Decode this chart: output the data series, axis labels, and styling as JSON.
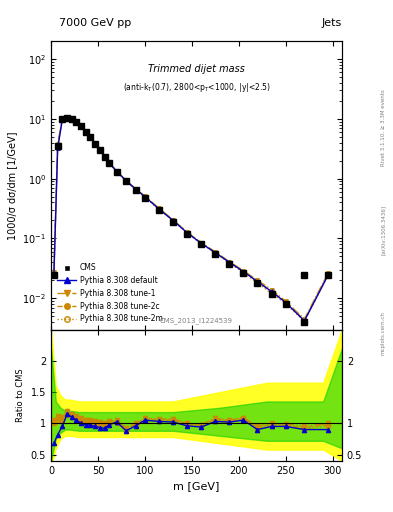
{
  "title_top": "7000 GeV pp",
  "title_right": "Jets",
  "plot_title": "Trimmed dijet mass",
  "plot_subtitle": "(anti-k_{T}(0.7), 2800<p_{T}<1000, |y|<2.5)",
  "ylabel_main": "1000/σ dσ/dm [1/GeV]",
  "ylabel_ratio": "Ratio to CMS",
  "xlabel": "m [GeV]",
  "watermark": "CMS_2013_I1224539",
  "rivet_label": "Rivet 3.1.10, ≥ 3.3M events",
  "arxiv_label": "[arXiv:1306.3436]",
  "mcplots_label": "mcplots.cern.ch",
  "cms_x": [
    3,
    7,
    12,
    17,
    22,
    27,
    32,
    37,
    42,
    47,
    52,
    57,
    62,
    70,
    80,
    90,
    100,
    115,
    130,
    145,
    160,
    175,
    190,
    205,
    220,
    235,
    250,
    270,
    295
  ],
  "cms_y": [
    0.025,
    3.5,
    10.0,
    10.5,
    10.0,
    9.0,
    7.5,
    6.0,
    5.0,
    3.8,
    3.0,
    2.3,
    1.8,
    1.3,
    0.9,
    0.65,
    0.48,
    0.3,
    0.19,
    0.12,
    0.08,
    0.055,
    0.038,
    0.026,
    0.018,
    0.012,
    0.008,
    0.004,
    0.025
  ],
  "pythia_default_x": [
    3,
    7,
    12,
    17,
    22,
    27,
    32,
    37,
    42,
    47,
    52,
    57,
    62,
    70,
    80,
    90,
    100,
    115,
    130,
    145,
    160,
    175,
    190,
    205,
    220,
    235,
    250,
    270,
    295
  ],
  "pythia_default_y": [
    0.025,
    3.2,
    9.8,
    10.3,
    10.0,
    9.0,
    7.5,
    6.1,
    5.05,
    3.85,
    3.05,
    2.32,
    1.82,
    1.32,
    0.92,
    0.67,
    0.5,
    0.31,
    0.2,
    0.125,
    0.083,
    0.058,
    0.04,
    0.028,
    0.019,
    0.013,
    0.0085,
    0.0042,
    0.024
  ],
  "pythia_tune1_x": [
    3,
    7,
    12,
    17,
    22,
    27,
    32,
    37,
    42,
    47,
    52,
    57,
    62,
    70,
    80,
    90,
    100,
    115,
    130,
    145,
    160,
    175,
    190,
    205,
    220,
    235,
    250,
    270,
    295
  ],
  "pythia_tune1_y": [
    0.028,
    3.8,
    10.2,
    10.6,
    10.2,
    9.2,
    7.7,
    6.2,
    5.1,
    3.9,
    3.1,
    2.35,
    1.84,
    1.34,
    0.93,
    0.68,
    0.51,
    0.32,
    0.205,
    0.128,
    0.085,
    0.06,
    0.041,
    0.029,
    0.02,
    0.014,
    0.009,
    0.0045,
    0.026
  ],
  "pythia_tune2c_x": [
    3,
    7,
    12,
    17,
    22,
    27,
    32,
    37,
    42,
    47,
    52,
    57,
    62,
    70,
    80,
    90,
    100,
    115,
    130,
    145,
    160,
    175,
    190,
    205,
    220,
    235,
    250,
    270,
    295
  ],
  "pythia_tune2c_y": [
    0.027,
    3.6,
    10.0,
    10.5,
    10.1,
    9.1,
    7.6,
    6.15,
    5.08,
    3.87,
    3.07,
    2.33,
    1.83,
    1.33,
    0.92,
    0.67,
    0.5,
    0.315,
    0.202,
    0.127,
    0.084,
    0.059,
    0.04,
    0.028,
    0.019,
    0.013,
    0.0088,
    0.0043,
    0.025
  ],
  "pythia_tune2m_x": [
    3,
    7,
    12,
    17,
    22,
    27,
    32,
    37,
    42,
    47,
    52,
    57,
    62,
    70,
    80,
    90,
    100,
    115,
    130,
    145,
    160,
    175,
    190,
    205,
    220,
    235,
    250,
    270,
    295
  ],
  "pythia_tune2m_y": [
    0.026,
    3.4,
    9.9,
    10.4,
    10.0,
    9.05,
    7.55,
    6.1,
    5.03,
    3.82,
    3.02,
    2.3,
    1.81,
    1.31,
    0.91,
    0.66,
    0.49,
    0.308,
    0.198,
    0.124,
    0.082,
    0.057,
    0.039,
    0.027,
    0.018,
    0.012,
    0.0082,
    0.0041,
    0.024
  ],
  "ratio_default_y": [
    0.68,
    0.82,
    0.95,
    1.15,
    1.1,
    1.05,
    1.0,
    0.98,
    0.97,
    0.95,
    0.93,
    0.92,
    0.98,
    1.02,
    0.88,
    0.96,
    1.05,
    1.03,
    1.02,
    0.96,
    0.94,
    1.03,
    1.02,
    1.05,
    0.9,
    0.95,
    0.95,
    0.9,
    0.9
  ],
  "ratio_tune1_y": [
    1.05,
    1.12,
    1.1,
    1.2,
    1.15,
    1.12,
    1.08,
    1.05,
    1.05,
    1.04,
    1.02,
    1.0,
    1.03,
    1.05,
    0.92,
    1.0,
    1.08,
    1.07,
    1.07,
    1.0,
    0.98,
    1.08,
    1.05,
    1.09,
    0.95,
    1.0,
    0.99,
    0.95,
    1.0
  ],
  "ratio_tune2c_y": [
    1.02,
    1.08,
    1.06,
    1.16,
    1.12,
    1.08,
    1.04,
    1.02,
    1.03,
    1.02,
    1.0,
    0.99,
    1.01,
    1.03,
    0.9,
    0.99,
    1.06,
    1.06,
    1.05,
    0.99,
    0.97,
    1.06,
    1.04,
    1.08,
    0.93,
    0.98,
    0.97,
    0.93,
    0.98
  ],
  "ratio_tune2m_y": [
    1.0,
    1.05,
    1.03,
    1.13,
    1.1,
    1.07,
    1.02,
    1.0,
    1.01,
    0.99,
    0.98,
    0.97,
    0.99,
    1.01,
    0.88,
    0.96,
    1.04,
    1.04,
    1.03,
    0.97,
    0.95,
    1.03,
    1.02,
    1.06,
    0.91,
    0.95,
    0.95,
    0.91,
    0.96
  ],
  "band_x": [
    0,
    5,
    10,
    15,
    20,
    30,
    50,
    80,
    130,
    180,
    230,
    290,
    310
  ],
  "band_green_lo": [
    0.4,
    0.75,
    0.85,
    0.9,
    0.9,
    0.88,
    0.88,
    0.88,
    0.88,
    0.8,
    0.72,
    0.72,
    0.6
  ],
  "band_green_hi": [
    2.2,
    1.35,
    1.25,
    1.2,
    1.2,
    1.18,
    1.18,
    1.18,
    1.18,
    1.25,
    1.35,
    1.35,
    2.2
  ],
  "band_yellow_lo": [
    0.3,
    0.6,
    0.75,
    0.8,
    0.8,
    0.78,
    0.78,
    0.78,
    0.78,
    0.68,
    0.58,
    0.58,
    0.4
  ],
  "band_yellow_hi": [
    2.5,
    1.6,
    1.45,
    1.38,
    1.38,
    1.35,
    1.35,
    1.35,
    1.35,
    1.5,
    1.65,
    1.65,
    2.5
  ],
  "color_cms": "#000000",
  "color_default": "#0000cc",
  "color_tune1": "#cc8800",
  "color_tune2c": "#cc8800",
  "color_tune2m": "#cc8800",
  "xlim": [
    0,
    310
  ],
  "ylim_main_lo": 0.003,
  "ylim_main_hi": 200,
  "ylim_ratio_lo": 0.4,
  "ylim_ratio_hi": 2.5
}
